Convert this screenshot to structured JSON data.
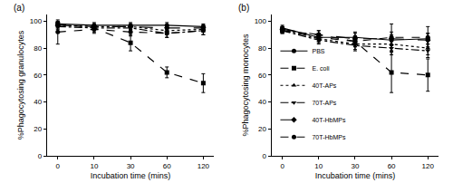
{
  "chart_data": [
    {
      "type": "line",
      "title": "(a)",
      "x_label": "Incubation time (mins)",
      "y_label": "%Phagocytosing granulocytes",
      "categories": [
        "0",
        "10",
        "30",
        "60",
        "120"
      ],
      "ylim": [
        0,
        105
      ],
      "yticks": [
        0,
        20,
        40,
        60,
        80,
        100
      ],
      "grid": false,
      "series": [
        {
          "name": "PBS",
          "color": "#000000",
          "marker": "circle",
          "line_style": "solid",
          "values": [
            98,
            97,
            97,
            97,
            96
          ],
          "errors": [
            2,
            2,
            2,
            2,
            2
          ]
        },
        {
          "name": "E. coli",
          "color": "#000000",
          "marker": "square",
          "line_style": "dash",
          "values": [
            98,
            95,
            84,
            62,
            54
          ],
          "errors": [
            2,
            3,
            6,
            4,
            7
          ]
        },
        {
          "name": "40T-APs",
          "color": "#000000",
          "marker": "triangle-up",
          "line_style": "dot",
          "values": [
            97,
            96,
            96,
            93,
            94
          ],
          "errors": [
            2,
            2,
            2,
            3,
            2
          ]
        },
        {
          "name": "70T-APs",
          "color": "#000000",
          "marker": "triangle-down",
          "line_style": "dashdot",
          "values": [
            96,
            95,
            95,
            91,
            93
          ],
          "errors": [
            2,
            2,
            2,
            3,
            3
          ]
        },
        {
          "name": "40T-HbMPs",
          "color": "#000000",
          "marker": "diamond",
          "line_style": "longdash",
          "values": [
            97,
            96,
            96,
            95,
            95
          ],
          "errors": [
            2,
            2,
            2,
            2,
            2
          ]
        },
        {
          "name": "70T-HbMPs",
          "color": "#000000",
          "marker": "circle",
          "line_style": "dash",
          "values": [
            92,
            94,
            92,
            91,
            93
          ],
          "errors": [
            9,
            3,
            3,
            3,
            3
          ]
        }
      ]
    },
    {
      "type": "line",
      "title": "(b)",
      "x_label": "Incubation time (mins)",
      "y_label": "%Phagocytosing monocytes",
      "categories": [
        "0",
        "10",
        "30",
        "60",
        "120"
      ],
      "ylim": [
        0,
        105
      ],
      "yticks": [
        0,
        20,
        40,
        60,
        80,
        100
      ],
      "grid": false,
      "legend": "lower left",
      "series": [
        {
          "name": "PBS",
          "color": "#000000",
          "marker": "circle",
          "line_style": "solid",
          "values": [
            95,
            88,
            88,
            86,
            87
          ],
          "errors": [
            2,
            3,
            4,
            4,
            4
          ]
        },
        {
          "name": "E. coli",
          "color": "#000000",
          "marker": "square",
          "line_style": "dash",
          "values": [
            93,
            88,
            85,
            62,
            60
          ],
          "errors": [
            2,
            3,
            4,
            15,
            12
          ]
        },
        {
          "name": "40T-APs",
          "color": "#000000",
          "marker": "triangle-up",
          "line_style": "dot",
          "values": [
            94,
            87,
            83,
            83,
            80
          ],
          "errors": [
            2,
            3,
            4,
            5,
            5
          ]
        },
        {
          "name": "70T-APs",
          "color": "#000000",
          "marker": "triangle-down",
          "line_style": "dashdot",
          "values": [
            93,
            86,
            82,
            80,
            78
          ],
          "errors": [
            2,
            3,
            4,
            5,
            5
          ]
        },
        {
          "name": "40T-HbMPs",
          "color": "#000000",
          "marker": "diamond",
          "line_style": "longdash",
          "values": [
            94,
            90,
            87,
            87,
            86
          ],
          "errors": [
            2,
            3,
            4,
            5,
            5
          ]
        },
        {
          "name": "70T-HbMPs",
          "color": "#000000",
          "marker": "circle",
          "line_style": "dash",
          "values": [
            93,
            90,
            85,
            88,
            88
          ],
          "errors": [
            2,
            3,
            4,
            10,
            8
          ]
        }
      ]
    }
  ]
}
